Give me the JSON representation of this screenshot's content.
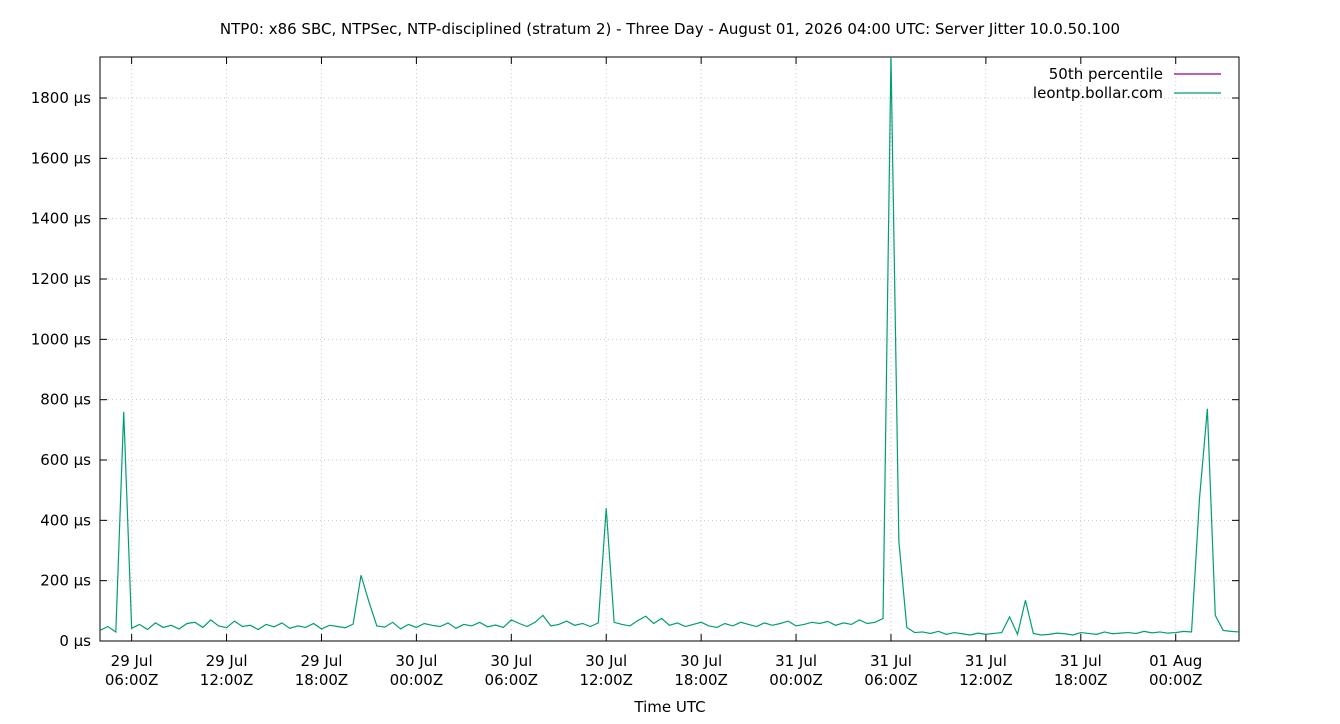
{
  "chart_data": {
    "type": "line",
    "title": "NTP0: x86 SBC, NTPSec, NTP-disciplined (stratum 2) - Three Day - August 01, 2026 04:00 UTC: Server Jitter 10.0.50.100",
    "x_label": "Time UTC",
    "x": [
      "29 Jul 04:00Z",
      "29 Jul 04:30Z",
      "29 Jul 05:00Z",
      "29 Jul 05:30Z",
      "29 Jul 06:00Z",
      "29 Jul 06:30Z",
      "29 Jul 07:00Z",
      "29 Jul 07:30Z",
      "29 Jul 08:00Z",
      "29 Jul 08:30Z",
      "29 Jul 09:00Z",
      "29 Jul 09:30Z",
      "29 Jul 10:00Z",
      "29 Jul 10:30Z",
      "29 Jul 11:00Z",
      "29 Jul 11:30Z",
      "29 Jul 12:00Z",
      "29 Jul 12:30Z",
      "29 Jul 13:00Z",
      "29 Jul 13:30Z",
      "29 Jul 14:00Z",
      "29 Jul 14:30Z",
      "29 Jul 15:00Z",
      "29 Jul 15:30Z",
      "29 Jul 16:00Z",
      "29 Jul 16:30Z",
      "29 Jul 17:00Z",
      "29 Jul 17:30Z",
      "29 Jul 18:00Z",
      "29 Jul 18:30Z",
      "29 Jul 19:00Z",
      "29 Jul 19:30Z",
      "29 Jul 20:00Z",
      "29 Jul 20:30Z",
      "29 Jul 21:00Z",
      "29 Jul 21:30Z",
      "29 Jul 22:00Z",
      "29 Jul 22:30Z",
      "29 Jul 23:00Z",
      "29 Jul 23:30Z",
      "30 Jul 00:00Z",
      "30 Jul 00:30Z",
      "30 Jul 01:00Z",
      "30 Jul 01:30Z",
      "30 Jul 02:00Z",
      "30 Jul 02:30Z",
      "30 Jul 03:00Z",
      "30 Jul 03:30Z",
      "30 Jul 04:00Z",
      "30 Jul 04:30Z",
      "30 Jul 05:00Z",
      "30 Jul 05:30Z",
      "30 Jul 06:00Z",
      "30 Jul 06:30Z",
      "30 Jul 07:00Z",
      "30 Jul 07:30Z",
      "30 Jul 08:00Z",
      "30 Jul 08:30Z",
      "30 Jul 09:00Z",
      "30 Jul 09:30Z",
      "30 Jul 10:00Z",
      "30 Jul 10:30Z",
      "30 Jul 11:00Z",
      "30 Jul 11:30Z",
      "30 Jul 12:00Z",
      "30 Jul 12:30Z",
      "30 Jul 13:00Z",
      "30 Jul 13:30Z",
      "30 Jul 14:00Z",
      "30 Jul 14:30Z",
      "30 Jul 15:00Z",
      "30 Jul 15:30Z",
      "30 Jul 16:00Z",
      "30 Jul 16:30Z",
      "30 Jul 17:00Z",
      "30 Jul 17:30Z",
      "30 Jul 18:00Z",
      "30 Jul 18:30Z",
      "30 Jul 19:00Z",
      "30 Jul 19:30Z",
      "30 Jul 20:00Z",
      "30 Jul 20:30Z",
      "30 Jul 21:00Z",
      "30 Jul 21:30Z",
      "30 Jul 22:00Z",
      "30 Jul 22:30Z",
      "30 Jul 23:00Z",
      "30 Jul 23:30Z",
      "31 Jul 00:00Z",
      "31 Jul 00:30Z",
      "31 Jul 01:00Z",
      "31 Jul 01:30Z",
      "31 Jul 02:00Z",
      "31 Jul 02:30Z",
      "31 Jul 03:00Z",
      "31 Jul 03:30Z",
      "31 Jul 04:00Z",
      "31 Jul 04:30Z",
      "31 Jul 05:00Z",
      "31 Jul 05:30Z",
      "31 Jul 06:00Z",
      "31 Jul 06:30Z",
      "31 Jul 07:00Z",
      "31 Jul 07:30Z",
      "31 Jul 08:00Z",
      "31 Jul 08:30Z",
      "31 Jul 09:00Z",
      "31 Jul 09:30Z",
      "31 Jul 10:00Z",
      "31 Jul 10:30Z",
      "31 Jul 11:00Z",
      "31 Jul 11:30Z",
      "31 Jul 12:00Z",
      "31 Jul 12:30Z",
      "31 Jul 13:00Z",
      "31 Jul 13:30Z",
      "31 Jul 14:00Z",
      "31 Jul 14:30Z",
      "31 Jul 15:00Z",
      "31 Jul 15:30Z",
      "31 Jul 16:00Z",
      "31 Jul 16:30Z",
      "31 Jul 17:00Z",
      "31 Jul 17:30Z",
      "31 Jul 18:00Z",
      "31 Jul 18:30Z",
      "31 Jul 19:00Z",
      "31 Jul 19:30Z",
      "31 Jul 20:00Z",
      "31 Jul 20:30Z",
      "31 Jul 21:00Z",
      "31 Jul 21:30Z",
      "31 Jul 22:00Z",
      "31 Jul 22:30Z",
      "31 Jul 23:00Z",
      "31 Jul 23:30Z",
      "01 Aug 00:00Z",
      "01 Aug 00:30Z",
      "01 Aug 01:00Z",
      "01 Aug 01:30Z",
      "01 Aug 02:00Z",
      "01 Aug 02:30Z",
      "01 Aug 03:00Z",
      "01 Aug 03:30Z",
      "01 Aug 04:00Z"
    ],
    "series": [
      {
        "name": "50th percentile",
        "color": "#94008a",
        "values": [
          null,
          null,
          null,
          null,
          null,
          null,
          null,
          null,
          null,
          null,
          null,
          null,
          null,
          null,
          null,
          null,
          null,
          null,
          null,
          null,
          null,
          null,
          null,
          null,
          null,
          null,
          null,
          null,
          null,
          null,
          null,
          null,
          null,
          null,
          null,
          null,
          null,
          null,
          null,
          null,
          null,
          null,
          null,
          null,
          null,
          null,
          null,
          null,
          null,
          null,
          null,
          null,
          null,
          null,
          null,
          null,
          null,
          null,
          null,
          null,
          null,
          null,
          null,
          null,
          null,
          null,
          null,
          null,
          null,
          null,
          null,
          null,
          null,
          null,
          null,
          null,
          null,
          null,
          null,
          null,
          null,
          null,
          null,
          null,
          null,
          null,
          null,
          null,
          null,
          null,
          null,
          null,
          null,
          null,
          null,
          null,
          null,
          null,
          null,
          null,
          null,
          null,
          null,
          null,
          null,
          null,
          null,
          null,
          null,
          null,
          null,
          null,
          null,
          null,
          null,
          null,
          null,
          null,
          null,
          null,
          null,
          null,
          null,
          null,
          null,
          null,
          null,
          null,
          null,
          null,
          null,
          null,
          null,
          null,
          null,
          null,
          null,
          null,
          null,
          null,
          null,
          null,
          null,
          null,
          null
        ]
      },
      {
        "name": "leontp.bollar.com",
        "color": "#009e73",
        "values": [
          35,
          48,
          30,
          760,
          42,
          55,
          38,
          60,
          45,
          52,
          40,
          58,
          62,
          45,
          70,
          50,
          44,
          66,
          48,
          52,
          38,
          55,
          47,
          60,
          42,
          50,
          45,
          58,
          40,
          52,
          48,
          44,
          56,
          218,
          130,
          50,
          46,
          62,
          40,
          55,
          45,
          58,
          52,
          48,
          60,
          42,
          55,
          50,
          62,
          47,
          53,
          45,
          70,
          58,
          48,
          62,
          85,
          50,
          55,
          66,
          52,
          58,
          48,
          60,
          440,
          62,
          55,
          50,
          68,
          82,
          58,
          75,
          52,
          60,
          48,
          55,
          62,
          50,
          45,
          58,
          50,
          62,
          55,
          48,
          60,
          52,
          58,
          66,
          50,
          55,
          62,
          58,
          65,
          52,
          60,
          55,
          70,
          58,
          62,
          75,
          1940,
          330,
          45,
          28,
          30,
          25,
          32,
          22,
          28,
          24,
          20,
          26,
          22,
          25,
          28,
          80,
          22,
          135,
          25,
          20,
          22,
          26,
          24,
          20,
          28,
          25,
          22,
          30,
          24,
          26,
          28,
          25,
          32,
          27,
          30,
          26,
          28,
          32,
          30,
          470,
          770,
          85,
          35,
          32,
          30
        ]
      }
    ],
    "xlim": [
      "29 Jul 04:00Z",
      "01 Aug 04:00Z"
    ],
    "xticks": [
      "29 Jul 06:00Z",
      "29 Jul 12:00Z",
      "29 Jul 18:00Z",
      "30 Jul 00:00Z",
      "30 Jul 06:00Z",
      "30 Jul 12:00Z",
      "30 Jul 18:00Z",
      "31 Jul 00:00Z",
      "31 Jul 06:00Z",
      "31 Jul 12:00Z",
      "31 Jul 18:00Z",
      "01 Aug 00:00Z"
    ],
    "ylim": [
      0,
      1936
    ],
    "yticks": [
      {
        "value": 0,
        "label": "0 µs"
      },
      {
        "value": 200,
        "label": "200 µs"
      },
      {
        "value": 400,
        "label": "400 µs"
      },
      {
        "value": 600,
        "label": "600 µs"
      },
      {
        "value": 800,
        "label": "800 µs"
      },
      {
        "value": 1000,
        "label": "1000 µs"
      },
      {
        "value": 1200,
        "label": "1200 µs"
      },
      {
        "value": 1400,
        "label": "1400 µs"
      },
      {
        "value": 1600,
        "label": "1600 µs"
      },
      {
        "value": 1800,
        "label": "1800 µs"
      }
    ],
    "grid": true,
    "legend": "top-right"
  }
}
